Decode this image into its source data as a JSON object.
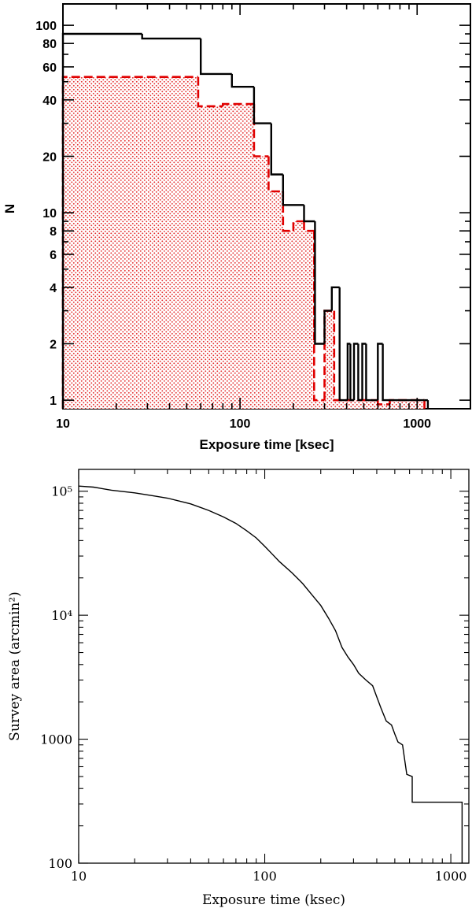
{
  "chart_data": [
    {
      "type": "histogram",
      "xlabel": "Exposure time [ksec]",
      "ylabel": "N",
      "xscale": "log",
      "yscale": "log",
      "xlim": [
        10,
        2000
      ],
      "ylim": [
        0.9,
        130
      ],
      "x_ticks": [
        "10",
        "100",
        "1000"
      ],
      "y_ticks": [
        "1",
        "2",
        "4",
        "6",
        "8",
        "10",
        "20",
        "40",
        "60",
        "80",
        "100"
      ],
      "grid": false,
      "series": [
        {
          "style": "solid",
          "color": "#000000",
          "bins": [
            {
              "x0": 10,
              "x1": 28,
              "n": 90
            },
            {
              "x0": 28,
              "x1": 60,
              "n": 85
            },
            {
              "x0": 60,
              "x1": 90,
              "n": 55
            },
            {
              "x0": 90,
              "x1": 120,
              "n": 47
            },
            {
              "x0": 120,
              "x1": 150,
              "n": 30
            },
            {
              "x0": 150,
              "x1": 175,
              "n": 16
            },
            {
              "x0": 175,
              "x1": 230,
              "n": 11
            },
            {
              "x0": 230,
              "x1": 265,
              "n": 9
            },
            {
              "x0": 265,
              "x1": 300,
              "n": 2
            },
            {
              "x0": 300,
              "x1": 330,
              "n": 3
            },
            {
              "x0": 330,
              "x1": 365,
              "n": 4
            },
            {
              "x0": 365,
              "x1": 405,
              "n": 1
            },
            {
              "x0": 405,
              "x1": 420,
              "n": 2
            },
            {
              "x0": 420,
              "x1": 440,
              "n": 1
            },
            {
              "x0": 440,
              "x1": 465,
              "n": 2
            },
            {
              "x0": 465,
              "x1": 490,
              "n": 1
            },
            {
              "x0": 490,
              "x1": 515,
              "n": 2
            },
            {
              "x0": 515,
              "x1": 545,
              "n": 1
            },
            {
              "x0": 545,
              "x1": 560,
              "n": 1
            },
            {
              "x0": 560,
              "x1": 600,
              "n": 1
            },
            {
              "x0": 600,
              "x1": 640,
              "n": 2
            },
            {
              "x0": 640,
              "x1": 1100,
              "n": 1
            },
            {
              "x0": 1100,
              "x1": 1150,
              "n": 1
            }
          ]
        },
        {
          "style": "dashed",
          "color": "#e00000",
          "fill": "dotted",
          "bins": [
            {
              "x0": 10,
              "x1": 58,
              "n": 53
            },
            {
              "x0": 58,
              "x1": 80,
              "n": 37
            },
            {
              "x0": 80,
              "x1": 120,
              "n": 38
            },
            {
              "x0": 120,
              "x1": 145,
              "n": 20
            },
            {
              "x0": 145,
              "x1": 175,
              "n": 13
            },
            {
              "x0": 175,
              "x1": 200,
              "n": 8
            },
            {
              "x0": 200,
              "x1": 230,
              "n": 9
            },
            {
              "x0": 230,
              "x1": 262,
              "n": 8
            },
            {
              "x0": 262,
              "x1": 300,
              "n": 1
            },
            {
              "x0": 300,
              "x1": 340,
              "n": 3
            },
            {
              "x0": 340,
              "x1": 560,
              "n": 1
            },
            {
              "x0": 560,
              "x1": 600,
              "n": 1
            },
            {
              "x0": 600,
              "x1": 700,
              "n": 0.95
            },
            {
              "x0": 700,
              "x1": 1100,
              "n": 1
            }
          ]
        }
      ]
    },
    {
      "type": "line",
      "xlabel": "Exposure time (ksec)",
      "ylabel": "Survey area (arcmin²)",
      "xscale": "log",
      "yscale": "log",
      "xlim": [
        10,
        1250
      ],
      "ylim": [
        100,
        150000
      ],
      "x_ticks": [
        "10",
        "100",
        "1000"
      ],
      "y_ticks": [
        "100",
        "1000",
        "10⁴",
        "10⁵"
      ],
      "grid": false,
      "series": [
        {
          "color": "#000000",
          "x": [
            10,
            12,
            15,
            20,
            25,
            30,
            40,
            50,
            60,
            70,
            80,
            90,
            100,
            110,
            120,
            140,
            160,
            180,
            200,
            220,
            240,
            260,
            280,
            300,
            320,
            350,
            380,
            400,
            420,
            450,
            480,
            500,
            520,
            550,
            580,
            620,
            620,
            1150,
            1150
          ],
          "y": [
            110000,
            108000,
            102000,
            97000,
            92000,
            88000,
            79000,
            70000,
            62000,
            55000,
            48000,
            42000,
            36000,
            31000,
            27000,
            22000,
            18000,
            14500,
            12000,
            9500,
            7500,
            5500,
            4600,
            4000,
            3400,
            3000,
            2700,
            2200,
            1800,
            1400,
            1300,
            1100,
            950,
            900,
            520,
            500,
            310,
            310,
            100
          ]
        }
      ]
    }
  ]
}
